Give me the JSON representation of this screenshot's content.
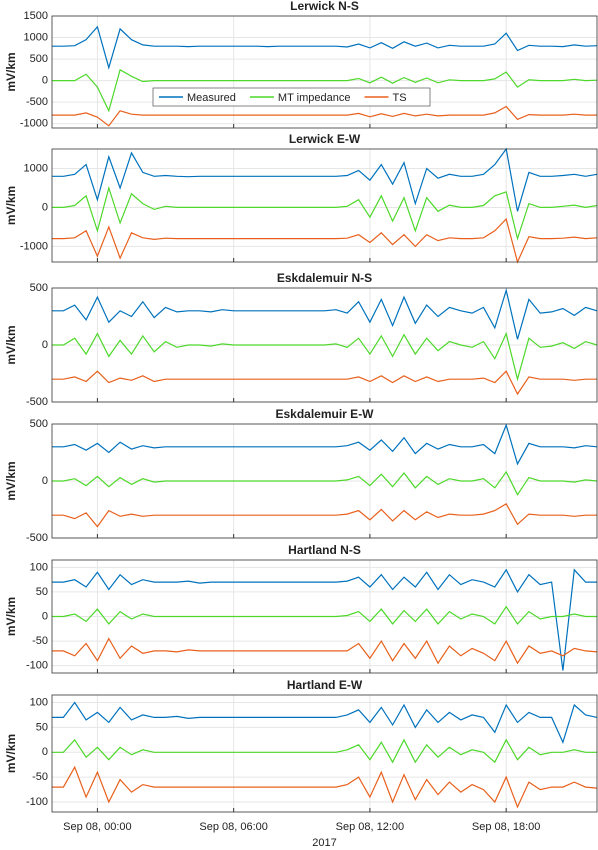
{
  "x_axis": {
    "x": [
      -2,
      -1.5,
      -1,
      -0.5,
      0,
      0.5,
      1,
      1.5,
      2,
      2.5,
      3,
      3.5,
      4,
      4.5,
      5,
      5.5,
      6,
      6.5,
      7,
      7.5,
      8,
      8.5,
      9,
      9.5,
      10,
      10.5,
      11,
      11.5,
      12,
      12.5,
      13,
      13.5,
      14,
      14.5,
      15,
      15.5,
      16,
      16.5,
      17,
      17.5,
      18,
      18.5,
      19,
      19.5,
      20,
      20.5,
      21,
      21.5,
      22
    ],
    "xlim": [
      -2,
      22
    ],
    "xticks": [
      {
        "value": 0,
        "label": "Sep 08, 00:00"
      },
      {
        "value": 6,
        "label": "Sep 08, 06:00"
      },
      {
        "value": 12,
        "label": "Sep 08, 12:00"
      },
      {
        "value": 18,
        "label": "Sep 08, 18:00"
      }
    ],
    "xlabel": "2017"
  },
  "chart_data": [
    {
      "type": "line",
      "title": "Lerwick N-S",
      "ylabel": "mV/km",
      "ylim": [
        -1100,
        1500
      ],
      "yticks": [
        -1000,
        -500,
        0,
        500,
        1000,
        1500
      ],
      "grid": true,
      "legend": "lower center",
      "series": [
        {
          "name": "Measured",
          "color": "#0072bd",
          "values": [
            800,
            800,
            810,
            950,
            1250,
            300,
            1200,
            950,
            830,
            800,
            800,
            800,
            790,
            800,
            800,
            800,
            800,
            800,
            800,
            790,
            800,
            800,
            800,
            800,
            800,
            800,
            780,
            850,
            760,
            880,
            750,
            900,
            800,
            870,
            760,
            820,
            800,
            800,
            800,
            850,
            1100,
            700,
            820,
            800,
            800,
            790,
            830,
            800,
            810
          ]
        },
        {
          "name": "MT impedance",
          "color": "#4dd82a",
          "values": [
            0,
            0,
            0,
            150,
            -150,
            -700,
            250,
            100,
            -20,
            0,
            0,
            0,
            0,
            0,
            0,
            0,
            0,
            0,
            0,
            0,
            0,
            0,
            0,
            0,
            0,
            0,
            0,
            50,
            -50,
            80,
            -60,
            70,
            -40,
            60,
            -50,
            20,
            0,
            0,
            0,
            40,
            200,
            -150,
            20,
            0,
            0,
            0,
            30,
            0,
            10
          ]
        },
        {
          "name": "TS",
          "color": "#e8601c",
          "values": [
            -800,
            -800,
            -800,
            -750,
            -850,
            -1050,
            -700,
            -780,
            -800,
            -800,
            -800,
            -800,
            -800,
            -800,
            -800,
            -800,
            -800,
            -800,
            -800,
            -800,
            -800,
            -800,
            -800,
            -800,
            -800,
            -800,
            -800,
            -760,
            -840,
            -770,
            -830,
            -760,
            -820,
            -780,
            -820,
            -800,
            -800,
            -800,
            -800,
            -750,
            -600,
            -900,
            -790,
            -800,
            -800,
            -800,
            -780,
            -800,
            -800
          ]
        }
      ]
    },
    {
      "type": "line",
      "title": "Lerwick E-W",
      "ylabel": "mV/km",
      "ylim": [
        -1400,
        1500
      ],
      "yticks": [
        -1000,
        0,
        1000
      ],
      "grid": true,
      "series": [
        {
          "color": "#0072bd",
          "values": [
            800,
            800,
            850,
            1100,
            200,
            1300,
            500,
            1400,
            900,
            800,
            820,
            800,
            790,
            800,
            800,
            800,
            800,
            800,
            800,
            800,
            800,
            800,
            800,
            800,
            800,
            800,
            820,
            950,
            700,
            1100,
            600,
            1150,
            100,
            1000,
            750,
            850,
            800,
            800,
            850,
            1100,
            1500,
            -100,
            900,
            800,
            800,
            820,
            850,
            800,
            850
          ]
        },
        {
          "color": "#4dd82a",
          "values": [
            0,
            0,
            50,
            300,
            -600,
            500,
            -400,
            350,
            100,
            -50,
            30,
            0,
            0,
            0,
            0,
            0,
            0,
            0,
            0,
            0,
            0,
            0,
            0,
            0,
            0,
            0,
            30,
            200,
            -250,
            300,
            -350,
            250,
            -600,
            250,
            -100,
            60,
            0,
            0,
            50,
            300,
            400,
            -800,
            100,
            0,
            0,
            30,
            60,
            0,
            50
          ]
        },
        {
          "color": "#e8601c",
          "values": [
            -800,
            -800,
            -780,
            -600,
            -1250,
            -500,
            -1300,
            -650,
            -780,
            -820,
            -790,
            -800,
            -800,
            -800,
            -800,
            -800,
            -800,
            -800,
            -800,
            -800,
            -800,
            -800,
            -800,
            -800,
            -800,
            -800,
            -790,
            -700,
            -900,
            -650,
            -950,
            -700,
            -1000,
            -700,
            -850,
            -780,
            -800,
            -800,
            -780,
            -600,
            -300,
            -1400,
            -750,
            -800,
            -800,
            -790,
            -760,
            -800,
            -780
          ]
        }
      ]
    },
    {
      "type": "line",
      "title": "Eskdalemuir N-S",
      "ylabel": "mV/km",
      "ylim": [
        -500,
        500
      ],
      "yticks": [
        -500,
        0,
        500
      ],
      "grid": true,
      "series": [
        {
          "color": "#0072bd",
          "values": [
            300,
            300,
            350,
            220,
            420,
            200,
            300,
            250,
            380,
            240,
            330,
            290,
            300,
            300,
            290,
            310,
            300,
            300,
            300,
            300,
            300,
            300,
            300,
            300,
            300,
            310,
            280,
            380,
            200,
            400,
            170,
            420,
            190,
            350,
            250,
            330,
            300,
            280,
            330,
            150,
            480,
            50,
            400,
            280,
            290,
            320,
            260,
            330,
            300
          ]
        },
        {
          "color": "#4dd82a",
          "values": [
            0,
            0,
            60,
            -80,
            100,
            -100,
            40,
            -80,
            80,
            -60,
            30,
            -20,
            0,
            0,
            -10,
            10,
            0,
            0,
            0,
            0,
            0,
            0,
            0,
            0,
            0,
            10,
            -20,
            60,
            -80,
            80,
            -100,
            90,
            -80,
            60,
            -50,
            30,
            0,
            -20,
            30,
            -120,
            100,
            -300,
            60,
            -20,
            -10,
            20,
            -30,
            30,
            0
          ]
        },
        {
          "color": "#e8601c",
          "values": [
            -300,
            -300,
            -280,
            -320,
            -230,
            -330,
            -290,
            -310,
            -270,
            -320,
            -300,
            -300,
            -300,
            -300,
            -300,
            -300,
            -300,
            -300,
            -300,
            -300,
            -300,
            -300,
            -300,
            -300,
            -300,
            -300,
            -300,
            -280,
            -320,
            -270,
            -330,
            -270,
            -320,
            -280,
            -320,
            -300,
            -300,
            -300,
            -290,
            -330,
            -230,
            -430,
            -280,
            -300,
            -300,
            -300,
            -310,
            -300,
            -300
          ]
        }
      ]
    },
    {
      "type": "line",
      "title": "Eskdalemuir E-W",
      "ylabel": "mV/km",
      "ylim": [
        -500,
        500
      ],
      "yticks": [
        -500,
        0,
        500
      ],
      "grid": true,
      "series": [
        {
          "color": "#0072bd",
          "values": [
            300,
            300,
            320,
            270,
            330,
            250,
            340,
            280,
            310,
            290,
            300,
            300,
            300,
            300,
            300,
            300,
            300,
            300,
            300,
            300,
            300,
            300,
            300,
            300,
            300,
            300,
            310,
            340,
            270,
            360,
            260,
            380,
            240,
            330,
            280,
            320,
            300,
            300,
            320,
            240,
            490,
            150,
            330,
            300,
            300,
            300,
            290,
            310,
            300
          ]
        },
        {
          "color": "#4dd82a",
          "values": [
            0,
            0,
            20,
            -40,
            40,
            -50,
            30,
            -30,
            20,
            -10,
            0,
            0,
            0,
            0,
            0,
            0,
            0,
            0,
            0,
            0,
            0,
            0,
            0,
            0,
            0,
            0,
            10,
            40,
            -40,
            60,
            -50,
            70,
            -60,
            40,
            -30,
            20,
            0,
            0,
            20,
            -60,
            80,
            -120,
            30,
            0,
            0,
            0,
            -10,
            10,
            0
          ]
        },
        {
          "color": "#e8601c",
          "values": [
            -300,
            -300,
            -330,
            -280,
            -400,
            -260,
            -310,
            -290,
            -310,
            -300,
            -300,
            -300,
            -300,
            -300,
            -300,
            -300,
            -300,
            -300,
            -300,
            -300,
            -300,
            -300,
            -300,
            -300,
            -300,
            -300,
            -290,
            -260,
            -340,
            -250,
            -350,
            -260,
            -340,
            -270,
            -320,
            -290,
            -300,
            -300,
            -290,
            -260,
            -200,
            -380,
            -290,
            -300,
            -300,
            -300,
            -310,
            -300,
            -300
          ]
        }
      ]
    },
    {
      "type": "line",
      "title": "Hartland N-S",
      "ylabel": "mV/km",
      "ylim": [
        -115,
        115
      ],
      "yticks": [
        -100,
        -50,
        0,
        50,
        100
      ],
      "grid": true,
      "series": [
        {
          "color": "#0072bd",
          "values": [
            70,
            70,
            75,
            60,
            90,
            55,
            85,
            65,
            75,
            70,
            70,
            70,
            72,
            68,
            70,
            70,
            70,
            70,
            70,
            70,
            70,
            70,
            70,
            70,
            70,
            70,
            72,
            80,
            60,
            85,
            55,
            80,
            60,
            90,
            55,
            85,
            65,
            75,
            70,
            60,
            95,
            50,
            85,
            65,
            70,
            -110,
            95,
            70,
            70
          ]
        },
        {
          "color": "#4dd82a",
          "values": [
            0,
            0,
            5,
            -10,
            15,
            -15,
            10,
            -5,
            5,
            0,
            0,
            0,
            0,
            0,
            0,
            0,
            0,
            0,
            0,
            0,
            0,
            0,
            0,
            0,
            0,
            0,
            2,
            10,
            -10,
            15,
            -15,
            12,
            -10,
            15,
            -15,
            10,
            -5,
            5,
            0,
            -15,
            20,
            -15,
            10,
            -5,
            0,
            0,
            5,
            0,
            0
          ]
        },
        {
          "color": "#e8601c",
          "values": [
            -70,
            -70,
            -80,
            -55,
            -90,
            -45,
            -85,
            -60,
            -75,
            -70,
            -70,
            -72,
            -68,
            -70,
            -70,
            -70,
            -70,
            -70,
            -70,
            -70,
            -70,
            -70,
            -70,
            -70,
            -70,
            -70,
            -70,
            -55,
            -85,
            -50,
            -90,
            -55,
            -85,
            -50,
            -95,
            -60,
            -80,
            -65,
            -75,
            -90,
            -50,
            -95,
            -60,
            -75,
            -70,
            -80,
            -65,
            -70,
            -72
          ]
        }
      ]
    },
    {
      "type": "line",
      "title": "Hartland E-W",
      "ylabel": "mV/km",
      "ylim": [
        -120,
        115
      ],
      "yticks": [
        -100,
        -50,
        0,
        50,
        100
      ],
      "grid": true,
      "series": [
        {
          "color": "#0072bd",
          "values": [
            70,
            70,
            100,
            65,
            80,
            60,
            90,
            65,
            75,
            70,
            70,
            72,
            68,
            70,
            70,
            70,
            70,
            70,
            70,
            70,
            70,
            70,
            70,
            70,
            70,
            70,
            75,
            85,
            60,
            90,
            55,
            95,
            50,
            85,
            60,
            80,
            65,
            75,
            70,
            40,
            95,
            60,
            80,
            70,
            70,
            20,
            95,
            75,
            70
          ]
        },
        {
          "color": "#4dd82a",
          "values": [
            0,
            0,
            25,
            -10,
            10,
            -15,
            10,
            -5,
            5,
            0,
            0,
            0,
            0,
            0,
            0,
            0,
            0,
            0,
            0,
            0,
            0,
            0,
            0,
            0,
            0,
            0,
            5,
            15,
            -15,
            20,
            -20,
            25,
            -20,
            15,
            -10,
            10,
            -5,
            5,
            0,
            -20,
            25,
            -15,
            10,
            -5,
            0,
            0,
            5,
            0,
            0
          ]
        },
        {
          "color": "#e8601c",
          "values": [
            -70,
            -70,
            -30,
            -90,
            -40,
            -100,
            -55,
            -80,
            -65,
            -70,
            -70,
            -70,
            -70,
            -70,
            -70,
            -70,
            -70,
            -70,
            -70,
            -70,
            -70,
            -70,
            -70,
            -70,
            -70,
            -70,
            -65,
            -50,
            -90,
            -40,
            -100,
            -45,
            -95,
            -55,
            -85,
            -60,
            -80,
            -65,
            -75,
            -100,
            -50,
            -110,
            -60,
            -75,
            -70,
            -70,
            -60,
            -70,
            -72
          ]
        }
      ]
    }
  ]
}
